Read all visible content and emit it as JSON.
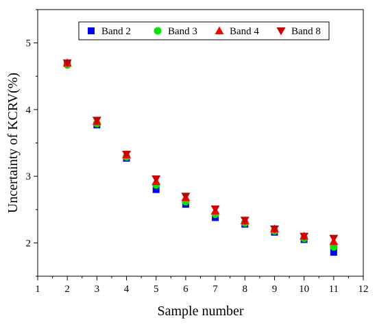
{
  "chart_data": {
    "type": "scatter",
    "title": "",
    "xlabel": "Sample number",
    "ylabel": "Uncertainty of KCRV(%)",
    "xlim": [
      1,
      12
    ],
    "ylim": [
      1.5,
      5.5
    ],
    "xticks": [
      1,
      2,
      3,
      4,
      5,
      6,
      7,
      8,
      9,
      10,
      11,
      12
    ],
    "yticks": [
      2,
      3,
      4,
      5
    ],
    "grid": false,
    "legend_position": "top-center",
    "x": [
      2,
      3,
      4,
      5,
      6,
      7,
      8,
      9,
      10,
      11
    ],
    "series": [
      {
        "name": "Band 2",
        "marker": "square",
        "color": "#0000ff",
        "values": [
          4.69,
          3.77,
          3.27,
          2.8,
          2.58,
          2.38,
          2.28,
          2.16,
          2.05,
          1.86
        ]
      },
      {
        "name": "Band 3",
        "marker": "circle",
        "color": "#00e600",
        "values": [
          4.67,
          3.79,
          3.29,
          2.87,
          2.62,
          2.43,
          2.3,
          2.18,
          2.07,
          1.94
        ]
      },
      {
        "name": "Band 4",
        "marker": "triangle-up",
        "color": "#ff0000",
        "values": [
          4.7,
          3.82,
          3.32,
          2.92,
          2.68,
          2.48,
          2.33,
          2.21,
          2.1,
          2.02
        ]
      },
      {
        "name": "Band 8",
        "marker": "triangle-down",
        "color": "#cc0000",
        "values": [
          4.7,
          3.84,
          3.33,
          2.96,
          2.7,
          2.51,
          2.34,
          2.21,
          2.1,
          2.07
        ]
      }
    ]
  }
}
